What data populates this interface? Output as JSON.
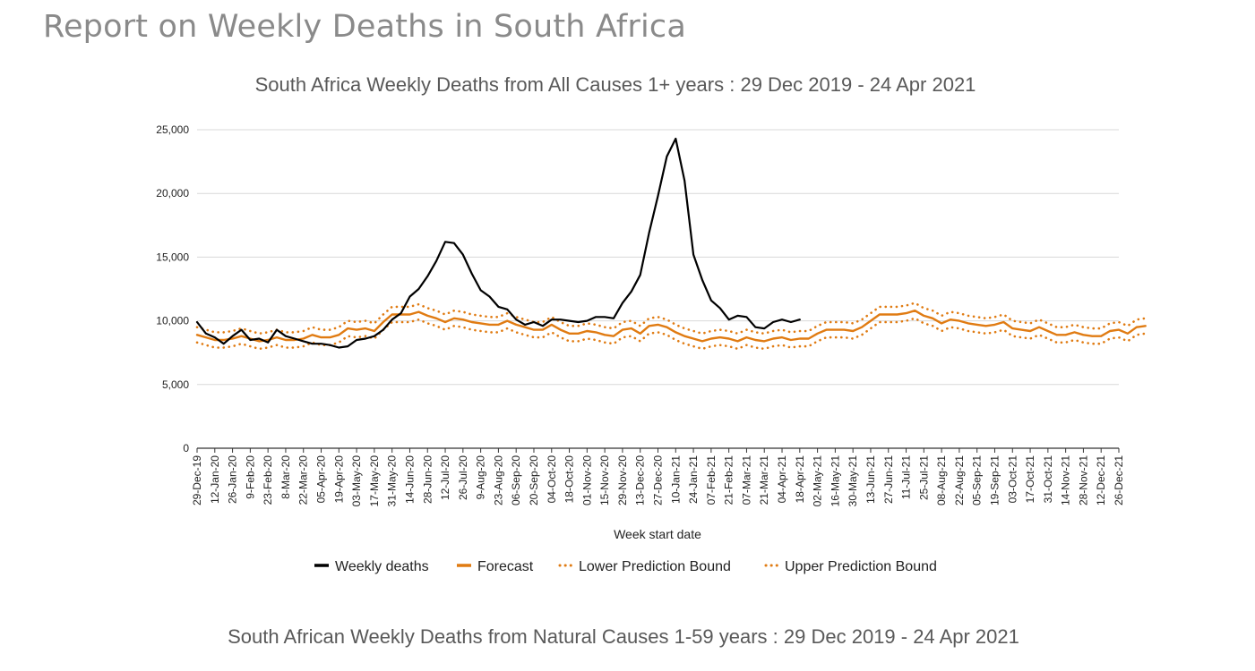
{
  "report_title": "Report on Weekly Deaths in South Africa",
  "next_chart_title": "South African Weekly Deaths from Natural Causes 1-59 years : 29 Dec 2019 - 24 Apr 2021",
  "colors": {
    "weekly": "#000000",
    "forecast": "#e07b12",
    "grid": "#d9d9d9",
    "axis": "#333333"
  },
  "chart_data": {
    "type": "line",
    "title": "South Africa Weekly Deaths from All Causes 1+ years : 29 Dec 2019 - 24 Apr 2021",
    "xlabel": "Week start date",
    "ylabel": "",
    "ylim": [
      0,
      25000
    ],
    "y_ticks": [
      0,
      5000,
      10000,
      15000,
      20000,
      25000
    ],
    "y_tick_labels": [
      "0",
      "5,000",
      "10,000",
      "15,000",
      "20,000",
      "25,000"
    ],
    "grid": true,
    "legend_position": "bottom",
    "x_tick_labels": [
      "29-Dec-19",
      "12-Jan-20",
      "26-Jan-20",
      "9-Feb-20",
      "23-Feb-20",
      "8-Mar-20",
      "22-Mar-20",
      "05-Apr-20",
      "19-Apr-20",
      "03-May-20",
      "17-May-20",
      "31-May-20",
      "14-Jun-20",
      "28-Jun-20",
      "12-Jul-20",
      "26-Jul-20",
      "9-Aug-20",
      "23-Aug-20",
      "06-Sep-20",
      "20-Sep-20",
      "04-Oct-20",
      "18-Oct-20",
      "01-Nov-20",
      "15-Nov-20",
      "29-Nov-20",
      "13-Dec-20",
      "27-Dec-20",
      "10-Jan-21",
      "24-Jan-21",
      "07-Feb-21",
      "21-Feb-21",
      "07-Mar-21",
      "21-Mar-21",
      "04-Apr-21",
      "18-Apr-21",
      "02-May-21",
      "16-May-21",
      "30-May-21",
      "13-Jun-21",
      "27-Jun-21",
      "11-Jul-21",
      "25-Jul-21",
      "08-Aug-21",
      "22-Aug-21",
      "05-Sep-21",
      "19-Sep-21",
      "03-Oct-21",
      "17-Oct-21",
      "31-Oct-21",
      "14-Nov-21",
      "28-Nov-21",
      "12-Dec-21",
      "26-Dec-21"
    ],
    "series": [
      {
        "name": "Weekly deaths",
        "style": "solid",
        "color": "#000000",
        "values": [
          9900,
          9000,
          8700,
          8200,
          8800,
          9300,
          8500,
          8600,
          8300,
          9300,
          8800,
          8600,
          8400,
          8200,
          8200,
          8100,
          7900,
          8000,
          8500,
          8600,
          8800,
          9300,
          10100,
          10600,
          11900,
          12500,
          13500,
          14700,
          16200,
          16100,
          15200,
          13700,
          12400,
          11900,
          11100,
          10900,
          10100,
          9700,
          9900,
          9600,
          10100,
          10100,
          10000,
          9900,
          10000,
          10300,
          10300,
          10200,
          11400,
          12300,
          13600,
          16900,
          19800,
          22900,
          24300,
          21000,
          15200,
          13200,
          11600,
          11000,
          10100,
          10400,
          10300,
          9500,
          9400,
          9900,
          10100,
          9900,
          10100
        ]
      },
      {
        "name": "Forecast",
        "style": "solid",
        "color": "#e07b12",
        "values": [
          8900,
          8700,
          8500,
          8500,
          8600,
          8800,
          8600,
          8400,
          8500,
          8700,
          8500,
          8500,
          8600,
          8900,
          8700,
          8700,
          8900,
          9400,
          9300,
          9400,
          9200,
          9900,
          10500,
          10500,
          10500,
          10700,
          10400,
          10200,
          9900,
          10200,
          10100,
          9900,
          9800,
          9700,
          9700,
          10000,
          9700,
          9500,
          9300,
          9300,
          9700,
          9300,
          9000,
          9000,
          9200,
          9100,
          8900,
          8800,
          9300,
          9400,
          9000,
          9600,
          9700,
          9500,
          9100,
          8800,
          8600,
          8400,
          8600,
          8700,
          8600,
          8400,
          8700,
          8500,
          8400,
          8600,
          8700,
          8500,
          8600,
          8600,
          9000,
          9300,
          9300,
          9300,
          9200,
          9500,
          10000,
          10500,
          10500,
          10500,
          10600,
          10800,
          10400,
          10200,
          9800,
          10100,
          10000,
          9800,
          9700,
          9600,
          9700,
          9900,
          9400,
          9300,
          9200,
          9500,
          9200,
          8900,
          8900,
          9100,
          8900,
          8800,
          8800,
          9200,
          9300,
          9000,
          9500,
          9600
        ]
      },
      {
        "name": "Lower Prediction Bound",
        "style": "dotted",
        "color": "#e07b12",
        "values": [
          8300,
          8100,
          7900,
          7900,
          8000,
          8200,
          8000,
          7800,
          7900,
          8100,
          7900,
          7900,
          8000,
          8300,
          8100,
          8100,
          8300,
          8800,
          8700,
          8800,
          8600,
          9300,
          9900,
          9900,
          9900,
          10100,
          9800,
          9600,
          9300,
          9600,
          9500,
          9300,
          9200,
          9100,
          9100,
          9400,
          9100,
          8900,
          8700,
          8700,
          9100,
          8700,
          8400,
          8400,
          8600,
          8500,
          8300,
          8200,
          8700,
          8800,
          8400,
          9000,
          9100,
          8900,
          8500,
          8200,
          8000,
          7800,
          8000,
          8100,
          8000,
          7800,
          8100,
          7900,
          7800,
          8000,
          8100,
          7900,
          8000,
          8000,
          8400,
          8700,
          8700,
          8700,
          8600,
          8900,
          9400,
          9900,
          9900,
          9900,
          10000,
          10200,
          9800,
          9600,
          9200,
          9500,
          9400,
          9200,
          9100,
          9000,
          9100,
          9300,
          8800,
          8700,
          8600,
          8900,
          8600,
          8300,
          8300,
          8500,
          8300,
          8200,
          8200,
          8600,
          8700,
          8400,
          8900,
          9000
        ]
      },
      {
        "name": "Upper Prediction Bound",
        "style": "dotted",
        "color": "#e07b12",
        "values": [
          9500,
          9300,
          9100,
          9100,
          9200,
          9400,
          9200,
          9000,
          9100,
          9300,
          9100,
          9100,
          9200,
          9500,
          9300,
          9300,
          9500,
          10000,
          9900,
          10000,
          9800,
          10500,
          11100,
          11100,
          11100,
          11300,
          11000,
          10800,
          10500,
          10800,
          10700,
          10500,
          10400,
          10300,
          10300,
          10600,
          10300,
          10100,
          9900,
          9900,
          10300,
          9900,
          9600,
          9600,
          9800,
          9700,
          9500,
          9400,
          9900,
          10000,
          9600,
          10200,
          10300,
          10100,
          9700,
          9400,
          9200,
          9000,
          9200,
          9300,
          9200,
          9000,
          9300,
          9100,
          9000,
          9200,
          9300,
          9100,
          9200,
          9200,
          9600,
          9900,
          9900,
          9900,
          9800,
          10100,
          10600,
          11100,
          11100,
          11100,
          11200,
          11400,
          11000,
          10800,
          10400,
          10700,
          10600,
          10400,
          10300,
          10200,
          10300,
          10500,
          10000,
          9900,
          9800,
          10100,
          9800,
          9500,
          9500,
          9700,
          9500,
          9400,
          9400,
          9800,
          9900,
          9600,
          10100,
          10200
        ]
      }
    ]
  }
}
